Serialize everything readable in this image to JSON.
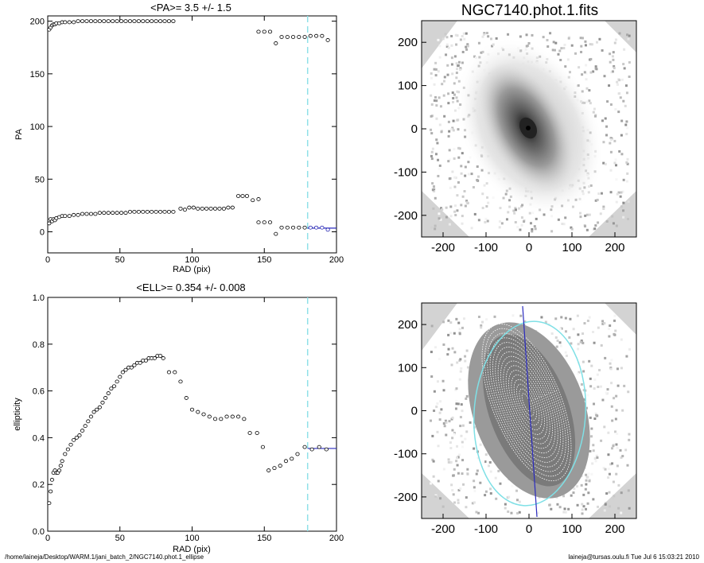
{
  "footer": {
    "left": "/home/laineja/Desktop/WARM.1/jani_batch_2/NGC7140.phot.1_ellipse",
    "right": "laineja@tursas.oulu.fi  Tue Jul  6 15:03:21 2010"
  },
  "chart_data": [
    {
      "type": "scatter",
      "title": "<PA>=   3.5 +/-   1.5",
      "xlabel": "RAD (pix)",
      "ylabel": "PA",
      "xlim": [
        0,
        200
      ],
      "ylim": [
        -20,
        205
      ],
      "xticks": [
        0,
        50,
        100,
        150,
        200
      ],
      "yticks": [
        0,
        50,
        100,
        150,
        200
      ],
      "vline_x": 180,
      "mean_line": {
        "y": 3.5,
        "x_range": [
          180,
          200
        ]
      },
      "series": [
        {
          "x": [
            1,
            2,
            3,
            4,
            5,
            6,
            8,
            10,
            12,
            15,
            18,
            21,
            24,
            27,
            30,
            33,
            36,
            39,
            42,
            45,
            48,
            51,
            54,
            57,
            60,
            63,
            66,
            69,
            72,
            75,
            78,
            81,
            84,
            87
          ],
          "values": [
            192,
            194,
            196,
            197,
            197,
            198,
            198,
            199,
            199,
            199,
            199,
            200,
            200,
            200,
            200,
            200,
            200,
            200,
            200,
            200,
            200,
            200,
            200,
            200,
            200,
            200,
            200,
            200,
            200,
            200,
            200,
            200,
            200,
            200
          ]
        },
        {
          "x": [
            1,
            2,
            3,
            4,
            5,
            6,
            8,
            10,
            12,
            15,
            18,
            21,
            24,
            27,
            30,
            33,
            36,
            39,
            42,
            45,
            48,
            51,
            54,
            57,
            60,
            63,
            66,
            69,
            72,
            75,
            78,
            81,
            84,
            87,
            92,
            95,
            98,
            101,
            104,
            107,
            110,
            113,
            116,
            119,
            122,
            125,
            128,
            132,
            135,
            138,
            142,
            146
          ],
          "values": [
            8,
            12,
            10,
            12,
            11,
            13,
            14,
            15,
            15,
            15,
            16,
            16,
            17,
            17,
            17,
            17,
            18,
            18,
            18,
            18,
            18,
            18,
            18,
            19,
            19,
            19,
            19,
            19,
            19,
            19,
            19,
            19,
            19,
            19,
            22,
            21,
            23,
            23,
            22,
            22,
            22,
            22,
            22,
            22,
            22,
            23,
            23,
            34,
            34,
            34,
            30,
            31
          ]
        },
        {
          "x": [
            146,
            150,
            154,
            158,
            162,
            166,
            170,
            174,
            178
          ],
          "values": [
            190,
            190,
            190,
            179,
            185,
            185,
            185,
            185,
            185
          ]
        },
        {
          "x": [
            146,
            150,
            154,
            158,
            162,
            166,
            170,
            174,
            178
          ],
          "values": [
            9,
            9,
            9,
            -2,
            4,
            4,
            4,
            4,
            4
          ]
        },
        {
          "x": [
            182,
            186,
            190,
            194
          ],
          "values": [
            186,
            186,
            186,
            182
          ]
        },
        {
          "x": [
            182,
            186,
            190,
            194
          ],
          "values": [
            4,
            4,
            4,
            2
          ],
          "color": "#1f1fb0"
        }
      ]
    },
    {
      "type": "scatter",
      "title": "<ELL>= 0.354 +/-  0.008",
      "xlabel": "RAD (pix)",
      "ylabel": "ellipticity",
      "xlim": [
        0,
        200
      ],
      "ylim": [
        0.0,
        1.0
      ],
      "xticks": [
        0,
        50,
        100,
        150,
        200
      ],
      "yticks": [
        0.0,
        0.2,
        0.4,
        0.6,
        0.8,
        1.0
      ],
      "vline_x": 180,
      "mean_line": {
        "y": 0.354,
        "x_range": [
          180,
          200
        ]
      },
      "series": [
        {
          "x": [
            1,
            2,
            3,
            4,
            5,
            6,
            7,
            8,
            9,
            10,
            12,
            14,
            16,
            18,
            20,
            22,
            24,
            26,
            28,
            30,
            32,
            34,
            36,
            38,
            40,
            42,
            44,
            46,
            48,
            50,
            52,
            54,
            56,
            58,
            60,
            62,
            64,
            66,
            68,
            70,
            72,
            74,
            76,
            78,
            80,
            84,
            88,
            92,
            96,
            100,
            104,
            108,
            112,
            116,
            120,
            124,
            128,
            132,
            136,
            140,
            145,
            149,
            153,
            157,
            161,
            165,
            169,
            173,
            178,
            183,
            188,
            193
          ],
          "values": [
            0.12,
            0.17,
            0.22,
            0.25,
            0.26,
            0.25,
            0.25,
            0.26,
            0.28,
            0.3,
            0.33,
            0.35,
            0.37,
            0.39,
            0.4,
            0.41,
            0.43,
            0.45,
            0.47,
            0.49,
            0.51,
            0.52,
            0.53,
            0.55,
            0.57,
            0.59,
            0.61,
            0.62,
            0.64,
            0.66,
            0.68,
            0.69,
            0.7,
            0.7,
            0.71,
            0.72,
            0.72,
            0.73,
            0.73,
            0.74,
            0.74,
            0.74,
            0.75,
            0.75,
            0.74,
            0.68,
            0.68,
            0.64,
            0.57,
            0.52,
            0.51,
            0.5,
            0.49,
            0.48,
            0.48,
            0.49,
            0.49,
            0.49,
            0.48,
            0.42,
            0.42,
            0.36,
            0.26,
            0.27,
            0.28,
            0.3,
            0.31,
            0.33,
            0.36,
            0.35,
            0.36,
            0.35
          ]
        }
      ]
    },
    {
      "type": "heatmap",
      "title": "NGC7140.phot.1.fits",
      "xlim": [
        -250,
        250
      ],
      "ylim": [
        -250,
        250
      ],
      "xticks": [
        -200,
        -100,
        0,
        100,
        200
      ],
      "yticks": [
        -200,
        -100,
        0,
        100,
        200
      ]
    },
    {
      "type": "heatmap",
      "title": "",
      "xlim": [
        -250,
        250
      ],
      "ylim": [
        -250,
        250
      ],
      "xticks": [
        -200,
        -100,
        0,
        100,
        200
      ],
      "yticks": [
        -200,
        -100,
        0,
        100,
        200
      ]
    }
  ]
}
